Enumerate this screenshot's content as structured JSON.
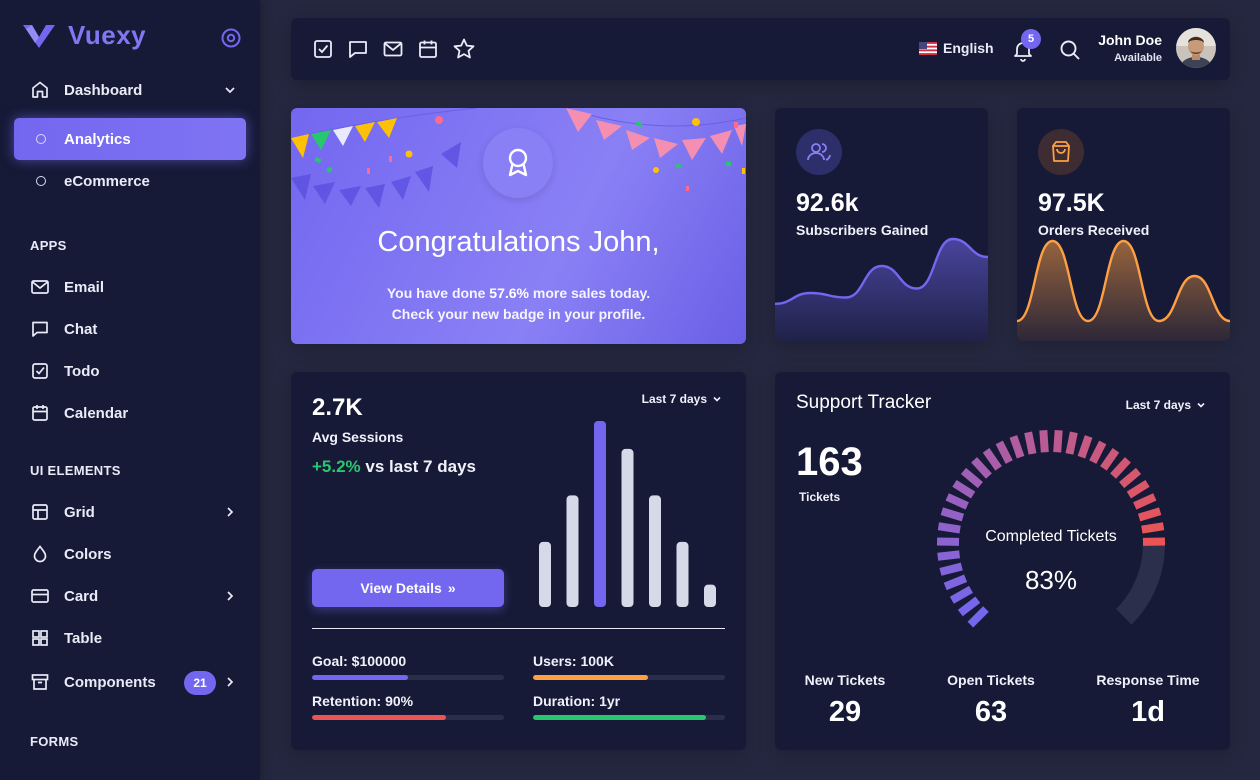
{
  "brand": {
    "name": "Vuexy"
  },
  "sidebar": {
    "dashboard_label": "Dashboard",
    "dashboard_children": [
      "Analytics",
      "eCommerce"
    ],
    "apps_header": "APPS",
    "apps": [
      {
        "label": "Email",
        "icon": "mail-icon"
      },
      {
        "label": "Chat",
        "icon": "chat-icon"
      },
      {
        "label": "Todo",
        "icon": "todo-icon"
      },
      {
        "label": "Calendar",
        "icon": "calendar-icon"
      }
    ],
    "ui_header": "UI ELEMENTS",
    "ui": [
      {
        "label": "Grid",
        "icon": "grid-icon"
      },
      {
        "label": "Colors",
        "icon": "droplet-icon"
      },
      {
        "label": "Card",
        "icon": "card-icon"
      },
      {
        "label": "Table",
        "icon": "table-icon"
      },
      {
        "label": "Components",
        "icon": "archive-icon",
        "badge": "21"
      }
    ],
    "forms_header": "FORMS"
  },
  "navbar": {
    "language": "English",
    "notifications": "5",
    "user_name": "John Doe",
    "user_status": "Available"
  },
  "congrats": {
    "title": "Congratulations John,",
    "line1_prefix": "You have done ",
    "line1_value": "57.6%",
    "line1_suffix": " more sales today.",
    "line2": "Check your new badge in your profile."
  },
  "subscribers": {
    "value": "92.6k",
    "label": "Subscribers Gained"
  },
  "orders": {
    "value": "97.5K",
    "label": "Orders Received"
  },
  "sessions": {
    "value": "2.7K",
    "label": "Avg Sessions",
    "delta": "+5.2%",
    "delta_suffix": " vs last 7 days",
    "range": "Last 7 days",
    "button": "View Details",
    "metrics": [
      {
        "label": "Goal: $100000",
        "progress": 0.5,
        "color": "#7367f0"
      },
      {
        "label": "Users: 100K",
        "progress": 0.6,
        "color": "#ff9f43"
      },
      {
        "label": "Retention: 90%",
        "progress": 0.7,
        "color": "#ea5455"
      },
      {
        "label": "Duration: 1yr",
        "progress": 0.9,
        "color": "#28c76f"
      }
    ]
  },
  "tracker": {
    "title": "Support Tracker",
    "range": "Last 7 days",
    "tickets_value": "163",
    "tickets_label": "Tickets",
    "gauge_label": "Completed Tickets",
    "gauge_value": "83%",
    "gauge_fraction": 0.83,
    "stats": [
      {
        "label": "New Tickets",
        "value": "29"
      },
      {
        "label": "Open Tickets",
        "value": "63"
      },
      {
        "label": "Response Time",
        "value": "1d"
      }
    ]
  },
  "colors": {
    "primary": "#7367f0",
    "success": "#28c76f",
    "warning": "#ff9f43",
    "danger": "#ea5455",
    "sidebar_bg": "#161a36",
    "body_bg": "#24273f"
  },
  "chart_data": [
    {
      "type": "area",
      "series": [
        {
          "values": [
            28,
            40,
            35,
            70,
            45,
            100,
            80
          ]
        }
      ]
    },
    {
      "type": "area",
      "series": [
        {
          "values": [
            10,
            90,
            10,
            90,
            10,
            55,
            10
          ]
        }
      ]
    },
    {
      "type": "bar",
      "series": [
        {
          "values": [
            35,
            60,
            100,
            85,
            60,
            35,
            12
          ]
        }
      ],
      "highlight_index": 2
    }
  ]
}
